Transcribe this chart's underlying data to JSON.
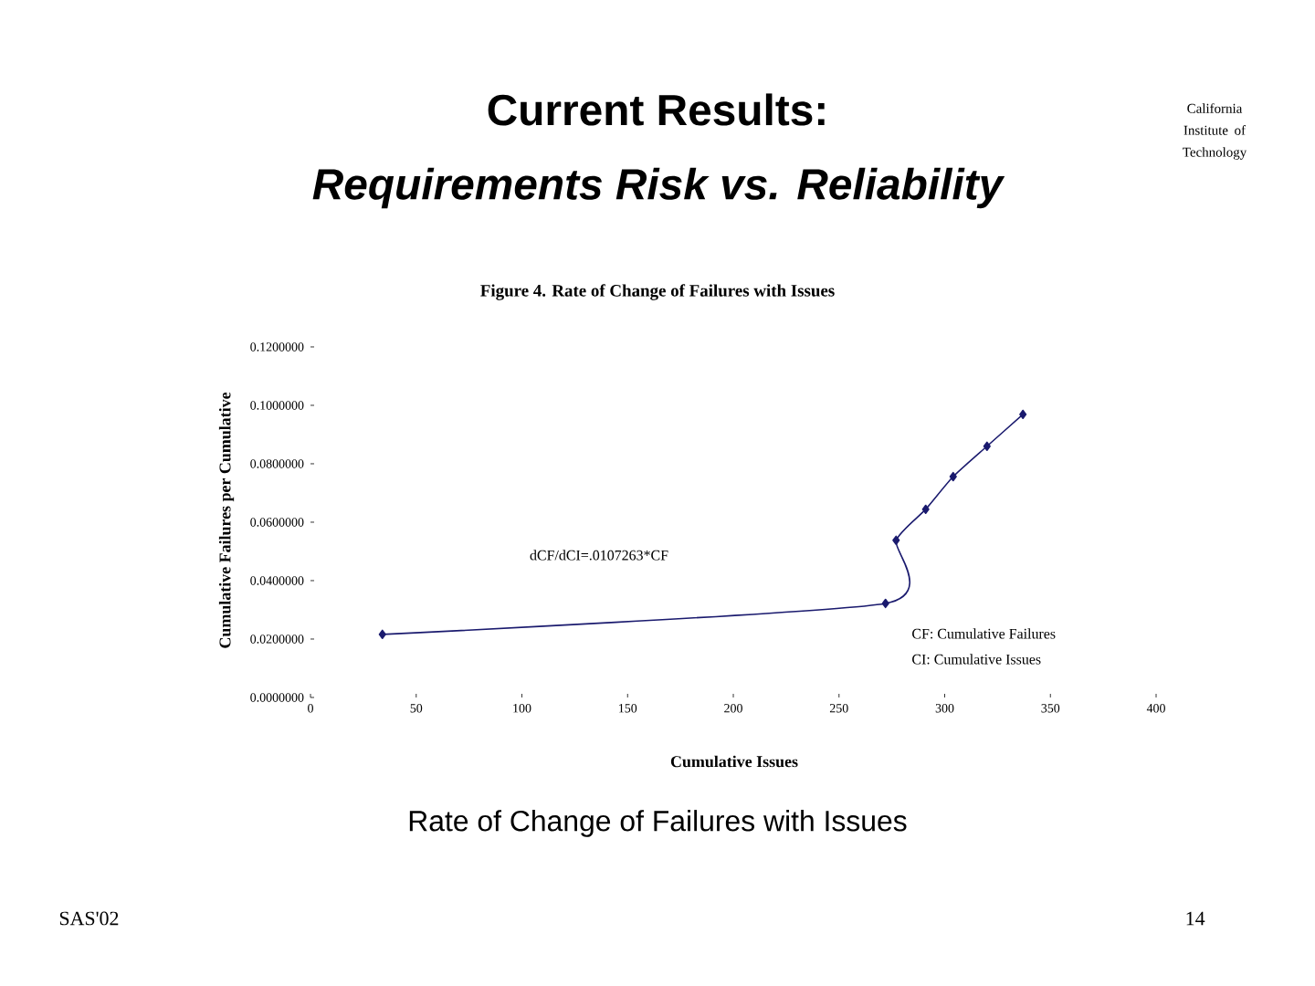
{
  "chart_data": {
    "type": "line",
    "title": "Figure 4. Rate of Change of Failures with Issues",
    "xlabel": "Cumulative Issues",
    "ylabel": "Cumulative Failures per Cumulative",
    "x": [
      34,
      272,
      277,
      291,
      304,
      320,
      337
    ],
    "series": [
      {
        "color": "#1a1a6e",
        "values": [
          0.0216,
          0.0322,
          0.0538,
          0.0644,
          0.0756,
          0.086,
          0.0969
        ]
      }
    ],
    "marker": "diamond",
    "line_style": "solid",
    "xlim": [
      0,
      400
    ],
    "xticks": [
      0,
      50,
      100,
      150,
      200,
      250,
      300,
      350,
      400
    ],
    "ylim": [
      0,
      0.12
    ],
    "yticks": [
      {
        "value": 0,
        "label": "0.0000000"
      },
      {
        "value": 0.02,
        "label": "0.0200000"
      },
      {
        "value": 0.04,
        "label": "0.0400000"
      },
      {
        "value": 0.06,
        "label": "0.0600000"
      },
      {
        "value": 0.08,
        "label": "0.0800000"
      },
      {
        "value": 0.1,
        "label": "0.1000000"
      },
      {
        "value": 0.12,
        "label": "0.1200000"
      }
    ],
    "annotations": [
      "Current Results:",
      "Requirements Risk vs. Reliability",
      "dCF/dCI=.0107263*CF",
      "CF: Cumulative Failures",
      "CI: Cumulative Issues",
      "Rate of Change of Failures with Issues",
      "SAS'02",
      "14",
      "California Institute of Technology"
    ]
  }
}
